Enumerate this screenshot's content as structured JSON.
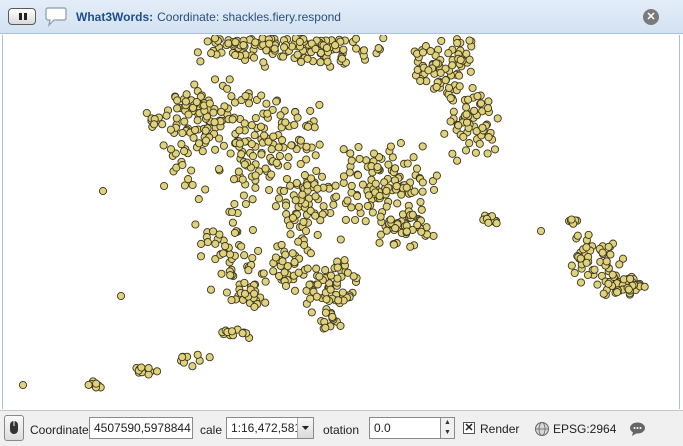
{
  "message_bar": {
    "title": "What3Words:",
    "text": "Coordinate: shackles.fiery.respond",
    "icons": [
      "pause-icon",
      "speech-bubble-icon",
      "close-icon"
    ]
  },
  "map": {
    "point_fill": "#e0d27a",
    "point_stroke": "#3a3520",
    "background": "#ffffff"
  },
  "status_bar": {
    "coordinate_label": "Coordinate",
    "coordinate_value": "4507590,5978844",
    "scale_label": "cale",
    "scale_value": "1:16,472,581",
    "rotation_label": "otation",
    "rotation_value": "0.0",
    "render_label": "Render",
    "render_checked": true,
    "crs_label": "EPSG:2964"
  }
}
